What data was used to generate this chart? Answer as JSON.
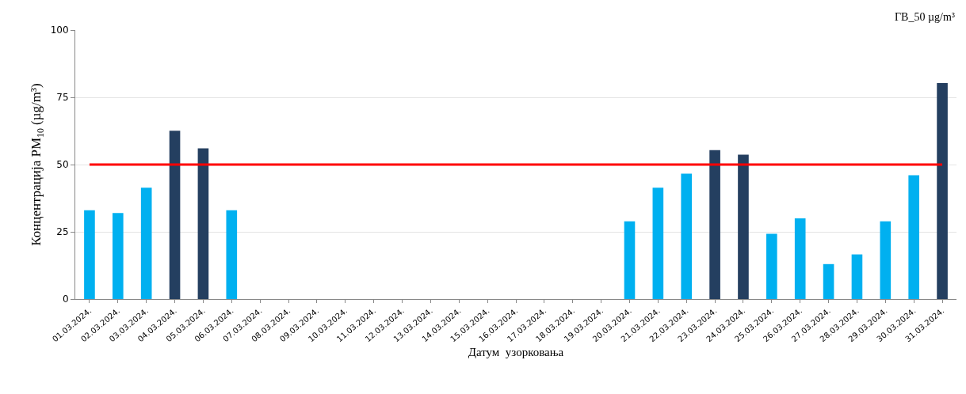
{
  "chart_data": {
    "type": "bar",
    "xlabel": "Датум  узорковања",
    "ylabel": "Концентрација PM$_{10}$ (µg/m³)",
    "categories": [
      "01.03.2024.",
      "02.03.2024.",
      "03.03.2024.",
      "04.03.2024.",
      "05.03.2024.",
      "06.03.2024.",
      "07.03.2024.",
      "08.03.2024.",
      "09.03.2024.",
      "10.03.2024.",
      "11.03.2024.",
      "12.03.2024.",
      "13.03.2024.",
      "14.03.2024.",
      "15.03.2024.",
      "16.03.2024.",
      "17.03.2024.",
      "18.03.2024.",
      "19.03.2024.",
      "20.03.2024.",
      "21.03.2024.",
      "22.03.2024.",
      "23.03.2024.",
      "24.03.2024.",
      "25.03.2024.",
      "26.03.2024.",
      "27.03.2024.",
      "28.03.2024.",
      "29.03.2024.",
      "30.03.2024.",
      "31.03.2024."
    ],
    "values": [
      33,
      32,
      41.4,
      62.6,
      56,
      33,
      null,
      null,
      null,
      null,
      null,
      null,
      null,
      null,
      null,
      null,
      null,
      null,
      null,
      28.9,
      41.4,
      46.6,
      55.4,
      53.7,
      24.3,
      30,
      13,
      16.6,
      28.9,
      46,
      80.3
    ],
    "colors": [
      "#00b0f0",
      "#00b0f0",
      "#00b0f0",
      "#243f60",
      "#243f60",
      "#00b0f0",
      "#00b0f0",
      "#00b0f0",
      "#00b0f0",
      "#00b0f0",
      "#00b0f0",
      "#00b0f0",
      "#00b0f0",
      "#00b0f0",
      "#00b0f0",
      "#00b0f0",
      "#00b0f0",
      "#00b0f0",
      "#00b0f0",
      "#00b0f0",
      "#00b0f0",
      "#00b0f0",
      "#243f60",
      "#243f60",
      "#00b0f0",
      "#00b0f0",
      "#00b0f0",
      "#00b0f0",
      "#00b0f0",
      "#00b0f0",
      "#243f60"
    ],
    "ylim": [
      0,
      100
    ],
    "yticks": [
      0,
      25,
      50,
      75,
      100
    ],
    "grid": "y",
    "annotations": [
      "ГВ_50 µg/m³"
    ],
    "ref_lines": [
      {
        "axis": "y",
        "value": 50,
        "color": "#ff0000",
        "line_style": "solid"
      }
    ]
  }
}
